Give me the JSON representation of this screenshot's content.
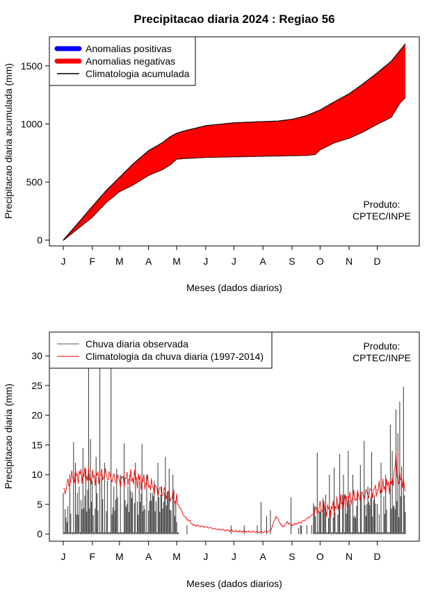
{
  "title": "Precipitacao diaria 2024 : Regiao 56",
  "chart_data": [
    {
      "type": "area",
      "ylabel": "Precipitacao diaria acumulada (mm)",
      "xlabel": "Meses (dados diarios)",
      "xlim": [
        1,
        366
      ],
      "ylim": [
        -50,
        1750
      ],
      "y_ticks": [
        0,
        500,
        1000,
        1500
      ],
      "x_tick_labels": [
        "J",
        "F",
        "M",
        "A",
        "M",
        "J",
        "J",
        "A",
        "S",
        "O",
        "N",
        "D"
      ],
      "x_tick_days": [
        1,
        32,
        61,
        92,
        122,
        153,
        183,
        214,
        245,
        275,
        306,
        336
      ],
      "legend": {
        "position": "top-left",
        "items": [
          {
            "label": "Anomalias positivas",
            "color": "#0000ff",
            "kind": "thick-line"
          },
          {
            "label": "Anomalias negativas",
            "color": "#ff0000",
            "kind": "thick-line"
          },
          {
            "label": "Climatologia acumulada",
            "color": "#000000",
            "kind": "line"
          }
        ]
      },
      "annotation": {
        "line1": "Produto:",
        "line2": "CPTEC/INPE",
        "position": "bottom-right"
      },
      "climatology_cumulative": {
        "x": [
          1,
          15,
          32,
          46,
          61,
          76,
          92,
          107,
          115,
          122,
          130,
          153,
          183,
          214,
          230,
          245,
          260,
          275,
          290,
          306,
          320,
          336,
          351,
          366
        ],
        "y": [
          0,
          130,
          290,
          420,
          540,
          660,
          770,
          840,
          890,
          920,
          940,
          985,
          1010,
          1020,
          1025,
          1040,
          1070,
          1120,
          1190,
          1260,
          1340,
          1440,
          1540,
          1690
        ]
      },
      "observed_cumulative": {
        "x": [
          1,
          15,
          32,
          46,
          61,
          76,
          92,
          107,
          115,
          122,
          130,
          153,
          183,
          214,
          230,
          245,
          260,
          270,
          275,
          290,
          306,
          320,
          336,
          351,
          360,
          366
        ],
        "y": [
          0,
          90,
          200,
          320,
          420,
          480,
          560,
          610,
          650,
          700,
          705,
          715,
          720,
          725,
          727,
          730,
          732,
          740,
          780,
          840,
          880,
          930,
          1000,
          1060,
          1180,
          1230
        ]
      }
    },
    {
      "type": "bar",
      "ylabel": "Precipitacao diaria (mm)",
      "xlabel": "Meses (dados diarios)",
      "xlim": [
        1,
        366
      ],
      "ylim": [
        -1.2,
        34
      ],
      "y_ticks": [
        0,
        5,
        10,
        15,
        20,
        25,
        30
      ],
      "x_tick_labels": [
        "J",
        "F",
        "M",
        "A",
        "M",
        "J",
        "J",
        "A",
        "S",
        "O",
        "N",
        "D"
      ],
      "x_tick_days": [
        1,
        32,
        61,
        92,
        122,
        153,
        183,
        214,
        245,
        275,
        306,
        336
      ],
      "legend": {
        "position": "top-left",
        "items": [
          {
            "label": "Chuva diaria observada",
            "color": "#555555",
            "kind": "line"
          },
          {
            "label": "Climatologia da chuva diaria (1997-2014)",
            "color": "#ff0000",
            "kind": "line"
          }
        ]
      },
      "annotation": {
        "line1": "Produto:",
        "line2": "CPTEC/INPE",
        "position": "top-right"
      },
      "observed_peaks": {
        "x": [
          5,
          8,
          12,
          14,
          18,
          22,
          25,
          28,
          30,
          32,
          36,
          40,
          42,
          45,
          48,
          52,
          55,
          58,
          62,
          66,
          70,
          72,
          75,
          78,
          82,
          85,
          90,
          94,
          98,
          102,
          106,
          110,
          114,
          118,
          120,
          122,
          212,
          218,
          222,
          244,
          252,
          268,
          272,
          278,
          285,
          290,
          296,
          300,
          305,
          310,
          318,
          322,
          326,
          330,
          340,
          345,
          350,
          352,
          356,
          358,
          360,
          362,
          364
        ],
        "y": [
          2,
          10,
          15.5,
          12,
          8,
          14.5,
          11,
          28.5,
          16,
          9,
          13,
          28.5,
          10,
          12,
          9,
          28.5,
          8,
          11,
          10,
          15.3,
          8,
          10,
          7,
          12,
          9,
          15.2,
          10,
          7,
          9,
          12,
          8,
          13,
          11,
          10,
          3,
          2,
          5.4,
          3,
          4,
          6.2,
          1,
          5.2,
          13.7,
          6,
          10,
          11.2,
          13.5,
          10,
          14,
          10,
          11.6,
          15.7,
          8,
          13.8,
          12,
          10,
          18.4,
          14,
          21,
          17,
          22.3,
          11.4,
          24.8
        ]
      },
      "climatology_daily": {
        "x": [
          1,
          10,
          20,
          32,
          45,
          61,
          75,
          92,
          100,
          110,
          122,
          130,
          140,
          153,
          165,
          183,
          200,
          214,
          222,
          228,
          235,
          240,
          245,
          255,
          265,
          275,
          285,
          295,
          306,
          320,
          336,
          345,
          352,
          356,
          358,
          362,
          366
        ],
        "y": [
          7,
          9.5,
          10,
          9.5,
          10,
          9,
          9.5,
          8.5,
          7.5,
          7,
          5.5,
          3,
          1.5,
          1.2,
          0.8,
          0.5,
          0.4,
          0.3,
          0.5,
          3,
          1.2,
          2,
          1.5,
          2,
          3,
          4.5,
          4,
          5,
          6,
          6.5,
          7.5,
          8,
          8.5,
          12.5,
          9,
          9.5,
          7
        ]
      }
    }
  ]
}
